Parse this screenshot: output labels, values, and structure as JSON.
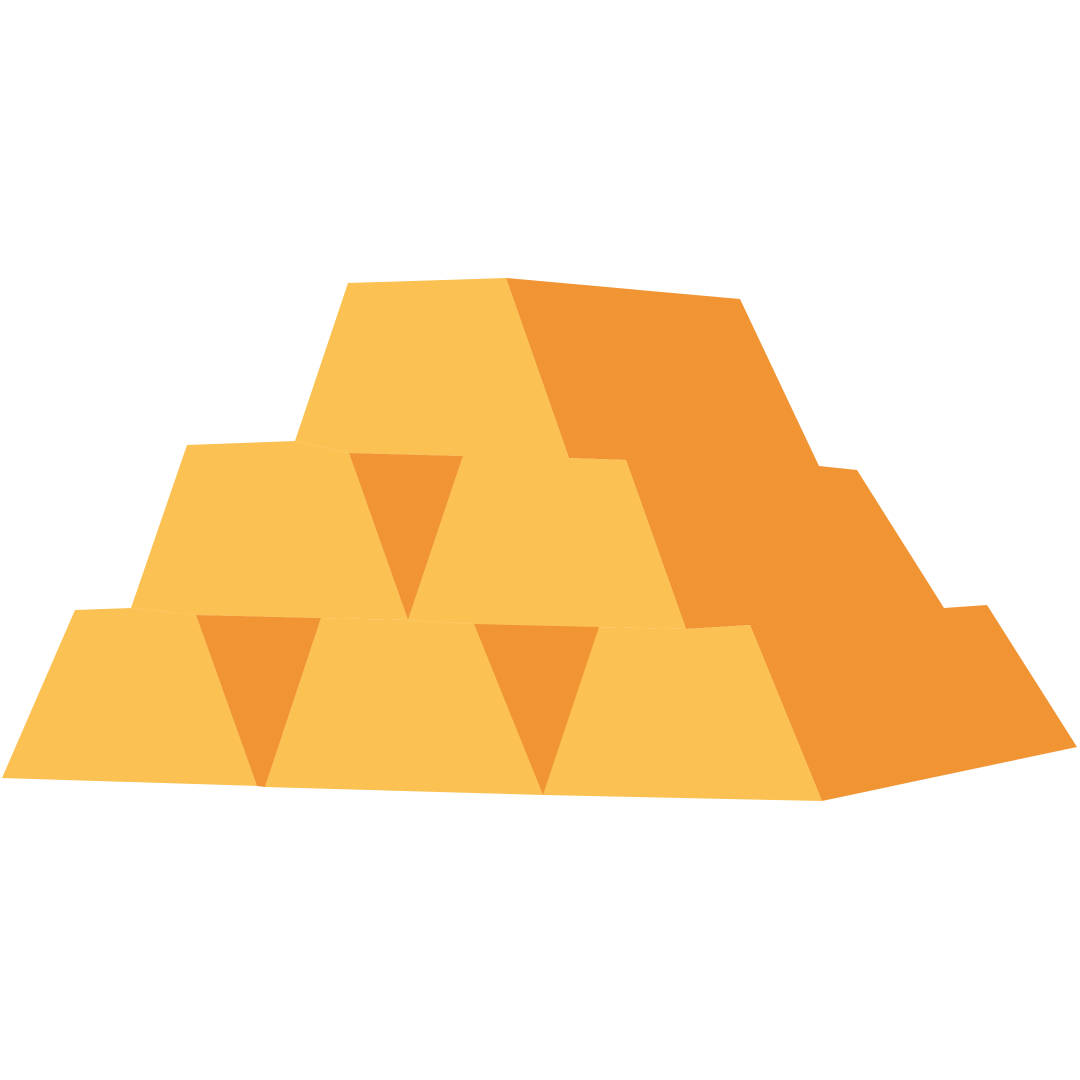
{
  "illustration": {
    "subject": "gold-bars-stack-icon",
    "colors": {
      "background": "#ffffff",
      "bar_face": "#FBC253",
      "bar_shade": "#F19534"
    }
  }
}
